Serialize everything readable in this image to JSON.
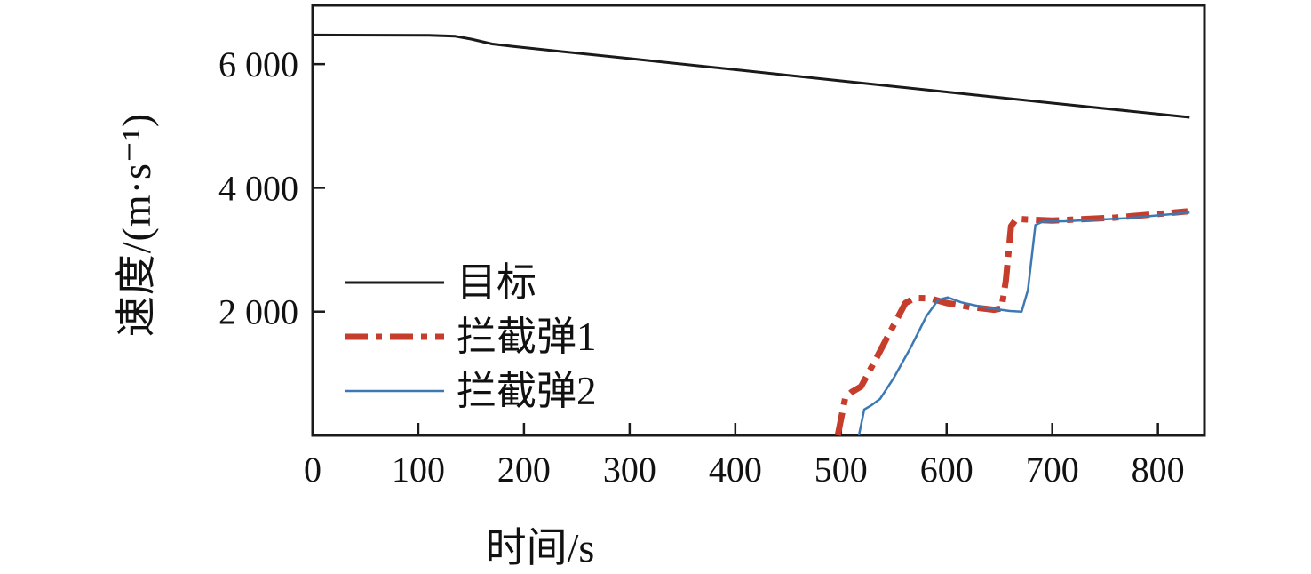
{
  "chart_data": {
    "type": "line",
    "title": "",
    "xlabel": "时间/s",
    "ylabel": "速度/(m·s⁻¹)",
    "xlim": [
      0,
      844
    ],
    "ylim": [
      0,
      6950
    ],
    "grid": false,
    "legend_position": "inside-left-middle",
    "axis_color": "#1a1a1a",
    "x_ticks": [
      {
        "v": 0,
        "label": "0"
      },
      {
        "v": 100,
        "label": "100"
      },
      {
        "v": 200,
        "label": "200"
      },
      {
        "v": 300,
        "label": "300"
      },
      {
        "v": 400,
        "label": "400"
      },
      {
        "v": 500,
        "label": "500"
      },
      {
        "v": 600,
        "label": "600"
      },
      {
        "v": 700,
        "label": "700"
      },
      {
        "v": 800,
        "label": "800"
      }
    ],
    "y_ticks": [
      {
        "v": 2000,
        "label": "2 000"
      },
      {
        "v": 4000,
        "label": "4 000"
      },
      {
        "v": 6000,
        "label": "6 000"
      }
    ],
    "series": [
      {
        "name": "target",
        "label": "目标",
        "color": "#1a1a1a",
        "width": 3,
        "dash": "",
        "points": [
          [
            0,
            6470
          ],
          [
            110,
            6465
          ],
          [
            135,
            6450
          ],
          [
            150,
            6405
          ],
          [
            170,
            6325
          ],
          [
            190,
            6285
          ],
          [
            300,
            6090
          ],
          [
            400,
            5910
          ],
          [
            500,
            5730
          ],
          [
            600,
            5550
          ],
          [
            700,
            5370
          ],
          [
            830,
            5140
          ]
        ]
      },
      {
        "name": "interceptor-1",
        "label": "拦截弹1",
        "color": "#c63d2b",
        "width": 7,
        "dash": "26 9 7 9",
        "points": [
          [
            497,
            0
          ],
          [
            504,
            600
          ],
          [
            510,
            700
          ],
          [
            519,
            790
          ],
          [
            533,
            1230
          ],
          [
            548,
            1720
          ],
          [
            561,
            2140
          ],
          [
            570,
            2220
          ],
          [
            584,
            2215
          ],
          [
            600,
            2140
          ],
          [
            622,
            2075
          ],
          [
            645,
            2030
          ],
          [
            652,
            2050
          ],
          [
            656,
            2500
          ],
          [
            661,
            3380
          ],
          [
            666,
            3500
          ],
          [
            676,
            3490
          ],
          [
            700,
            3470
          ],
          [
            760,
            3520
          ],
          [
            828,
            3620
          ]
        ]
      },
      {
        "name": "interceptor-2",
        "label": "拦截弹2",
        "color": "#3c78b4",
        "width": 2.5,
        "dash": "",
        "points": [
          [
            517,
            0
          ],
          [
            522,
            420
          ],
          [
            529,
            490
          ],
          [
            537,
            590
          ],
          [
            550,
            930
          ],
          [
            566,
            1420
          ],
          [
            581,
            1930
          ],
          [
            592,
            2190
          ],
          [
            601,
            2230
          ],
          [
            614,
            2150
          ],
          [
            638,
            2060
          ],
          [
            660,
            2010
          ],
          [
            671,
            2000
          ],
          [
            677,
            2350
          ],
          [
            684,
            3400
          ],
          [
            691,
            3455
          ],
          [
            712,
            3460
          ],
          [
            770,
            3510
          ],
          [
            830,
            3600
          ]
        ]
      }
    ]
  }
}
